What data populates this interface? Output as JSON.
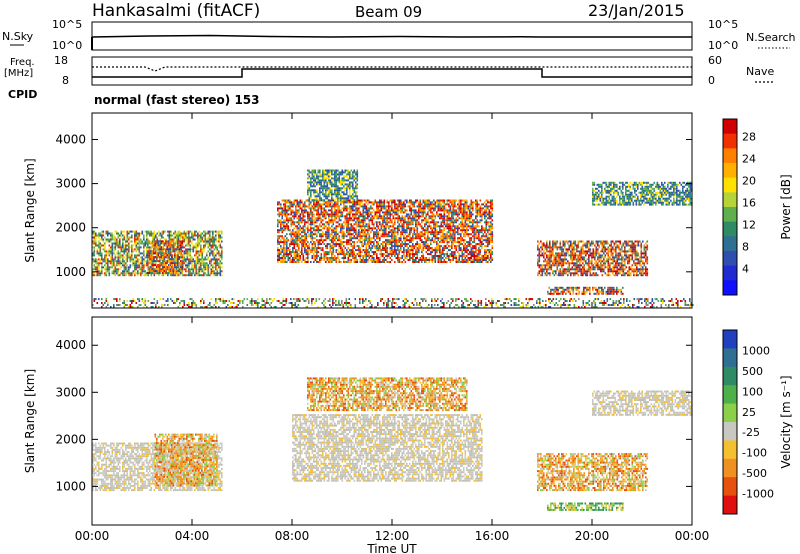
{
  "header": {
    "station": "Hankasalmi (fitACF)",
    "beam": "Beam 09",
    "date": "23/Jan/2015"
  },
  "meta_panels": {
    "nsky_label": "N.Sky",
    "nsky_ticks": [
      "10^5",
      "10^0"
    ],
    "nsearch_label": "N.Search",
    "nsearch_ticks": [
      "10^5",
      "10^0"
    ],
    "freq_label": "Freq.",
    "freq_unit": "[MHz]",
    "freq_ticks": [
      "18",
      "8"
    ],
    "nave_label": "Nave",
    "nave_ticks": [
      "60",
      "0"
    ],
    "cpid_label": "CPID",
    "cpid_value": "normal (fast stereo) 153"
  },
  "chart_data": [
    {
      "type": "heatmap",
      "name": "power",
      "ylabel": "Slant Range [km]",
      "yticks": [
        "4000",
        "3000",
        "2000",
        "1000"
      ],
      "ylim": [
        180,
        4600
      ],
      "colorbar": {
        "label": "Power [dB]",
        "ticks": [
          "28",
          "24",
          "20",
          "16",
          "12",
          "8",
          "4"
        ],
        "colors": [
          "#d00000",
          "#f03000",
          "#ff7f00",
          "#ffb000",
          "#ffe000",
          "#b5d43a",
          "#5fb04c",
          "#2f8a66",
          "#2f6f94",
          "#2e4fb0",
          "#1f2ad0",
          "#1010ff"
        ]
      },
      "regions": [
        {
          "t": [
            0.0,
            5.2
          ],
          "r": [
            900,
            1900
          ],
          "level": "med"
        },
        {
          "t": [
            2.2,
            3.6
          ],
          "r": [
            950,
            1700
          ],
          "level": "high"
        },
        {
          "t": [
            7.4,
            16.0
          ],
          "r": [
            1200,
            2600
          ],
          "level": "high"
        },
        {
          "t": [
            8.6,
            10.6
          ],
          "r": [
            2600,
            3300
          ],
          "level": "low"
        },
        {
          "t": [
            17.8,
            22.2
          ],
          "r": [
            900,
            1700
          ],
          "level": "high"
        },
        {
          "t": [
            18.2,
            21.2
          ],
          "r": [
            480,
            620
          ],
          "level": "high"
        },
        {
          "t": [
            20.0,
            24.0
          ],
          "r": [
            2500,
            3000
          ],
          "level": "low"
        },
        {
          "t": [
            0.0,
            24.0
          ],
          "r": [
            180,
            400
          ],
          "level": "noise"
        }
      ]
    },
    {
      "type": "heatmap",
      "name": "velocity",
      "ylabel": "Slant Range [km]",
      "yticks": [
        "4000",
        "3000",
        "2000",
        "1000"
      ],
      "ylim": [
        180,
        4600
      ],
      "colorbar": {
        "label": "Velocity [m s⁻¹]",
        "ticks": [
          "1000",
          "500",
          "100",
          "25",
          "-25",
          "-100",
          "-500",
          "-1000"
        ],
        "colors": [
          "#2040c0",
          "#2f6f94",
          "#2f8a66",
          "#4db04a",
          "#8ad048",
          "#c8c8c0",
          "#f5c030",
          "#f09020",
          "#e85010",
          "#e01010"
        ]
      },
      "xlabel": "Time UT",
      "xticks": [
        "00:00",
        "04:00",
        "08:00",
        "12:00",
        "16:00",
        "20:00",
        "00:00"
      ],
      "xlim": [
        0,
        24
      ],
      "regions": [
        {
          "t": [
            0.0,
            5.2
          ],
          "r": [
            900,
            1900
          ],
          "level": "gray"
        },
        {
          "t": [
            2.5,
            5.0
          ],
          "r": [
            1000,
            2100
          ],
          "level": "orange"
        },
        {
          "t": [
            8.0,
            15.6
          ],
          "r": [
            1100,
            2500
          ],
          "level": "gray"
        },
        {
          "t": [
            8.6,
            15.0
          ],
          "r": [
            2600,
            3300
          ],
          "level": "orange"
        },
        {
          "t": [
            17.8,
            22.2
          ],
          "r": [
            900,
            1700
          ],
          "level": "orange"
        },
        {
          "t": [
            18.2,
            21.2
          ],
          "r": [
            480,
            620
          ],
          "level": "green"
        },
        {
          "t": [
            20.0,
            24.0
          ],
          "r": [
            2500,
            3000
          ],
          "level": "gray"
        }
      ]
    }
  ]
}
